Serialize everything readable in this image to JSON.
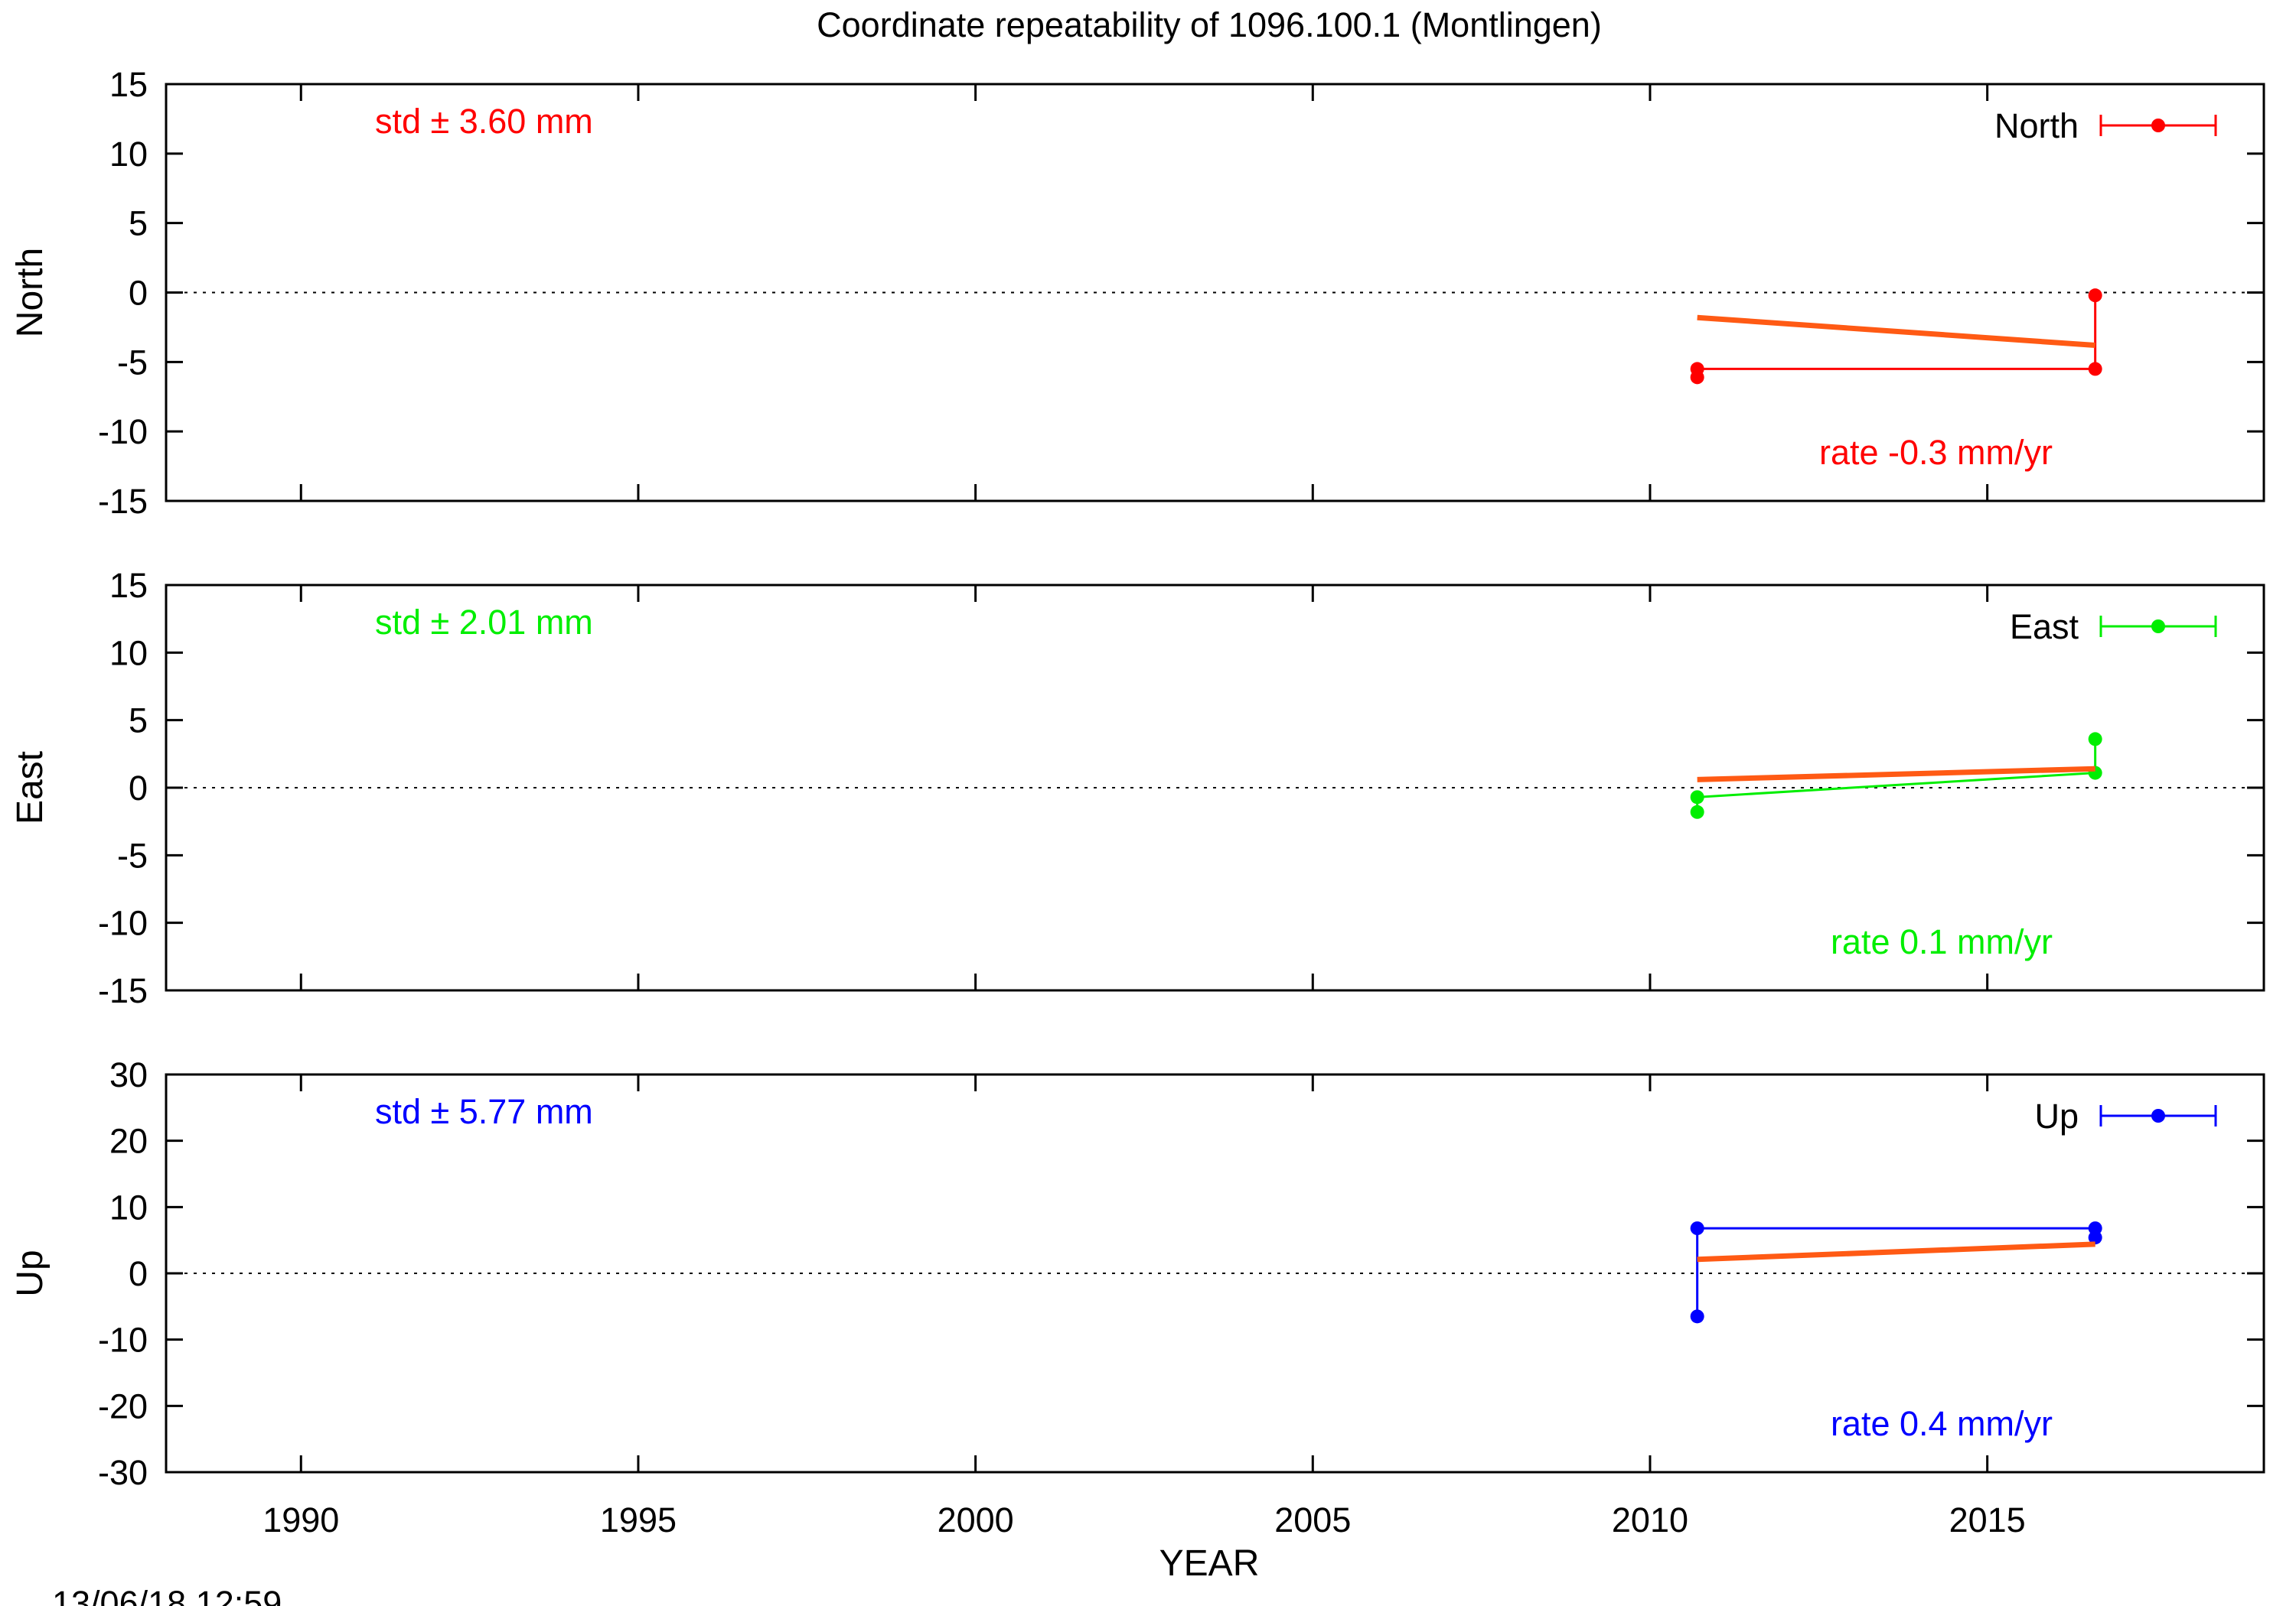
{
  "title": "Coordinate repeatability of 1096.100.1      (Montlingen)",
  "timestamp": "13/06/18 12:59",
  "chart_data": {
    "type": "line",
    "xlabel": "YEAR",
    "xlim": [
      1988.0,
      2019.1
    ],
    "xticks": [
      1990,
      1995,
      2000,
      2005,
      2010,
      2015
    ],
    "fit_color": "#ff5a14",
    "panels": [
      {
        "name": "North",
        "ylabel": "North",
        "color": "#ff0000",
        "ylim": [
          -15,
          15
        ],
        "yticks": [
          -15,
          -10,
          -5,
          0,
          5,
          10,
          15
        ],
        "std_text": "std ± 3.60 mm",
        "rate_text": "rate -0.3 mm/yr",
        "legend_label": "North",
        "points": [
          [
            2010.7,
            -6.1
          ],
          [
            2010.7,
            -5.5
          ],
          [
            2016.6,
            -5.5
          ],
          [
            2016.6,
            -0.2
          ]
        ],
        "fit": [
          [
            2010.7,
            -1.8
          ],
          [
            2016.6,
            -3.8
          ]
        ]
      },
      {
        "name": "East",
        "ylabel": "East",
        "color": "#00ee00",
        "ylim": [
          -15,
          15
        ],
        "yticks": [
          -15,
          -10,
          -5,
          0,
          5,
          10,
          15
        ],
        "std_text": "std ± 2.01 mm",
        "rate_text": "rate  0.1 mm/yr",
        "legend_label": "East",
        "points": [
          [
            2010.7,
            -1.8
          ],
          [
            2010.7,
            -0.7
          ],
          [
            2016.6,
            1.1
          ],
          [
            2016.6,
            3.6
          ]
        ],
        "fit": [
          [
            2010.7,
            0.6
          ],
          [
            2016.6,
            1.4
          ]
        ]
      },
      {
        "name": "Up",
        "ylabel": "Up",
        "color": "#0000ff",
        "ylim": [
          -30,
          30
        ],
        "yticks": [
          -30,
          -20,
          -10,
          0,
          10,
          20,
          30
        ],
        "std_text": "std ± 5.77 mm",
        "rate_text": "rate  0.4 mm/yr",
        "legend_label": "Up",
        "points": [
          [
            2010.7,
            -6.5
          ],
          [
            2010.7,
            6.8
          ],
          [
            2016.6,
            6.8
          ],
          [
            2016.6,
            5.4
          ]
        ],
        "fit": [
          [
            2010.7,
            2.1
          ],
          [
            2016.6,
            4.4
          ]
        ]
      }
    ]
  }
}
